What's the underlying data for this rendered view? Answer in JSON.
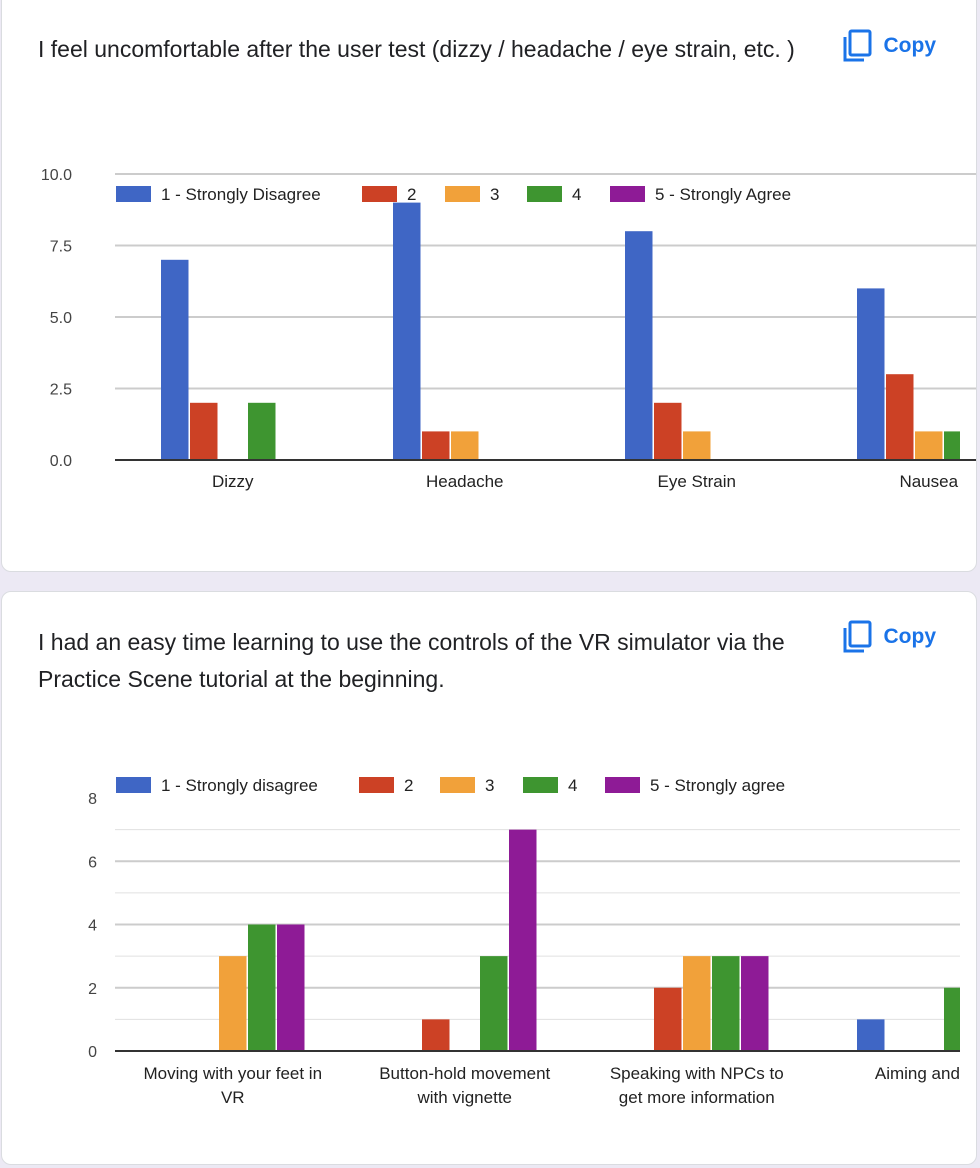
{
  "questions": [
    {
      "text": "I feel uncomfortable after the user test (dizzy / headache / eye strain, etc. )",
      "copy_label": "Copy",
      "copy_icon": "copy-icon"
    },
    {
      "text": "I had an easy time learning to use the controls of the VR simulator via the Practice Scene tutorial at the beginning.",
      "copy_label": "Copy",
      "copy_icon": "copy-icon"
    }
  ],
  "colors": {
    "accent": "#1a73e8"
  },
  "chart_data": [
    {
      "type": "bar",
      "title": "",
      "xlabel": "",
      "ylabel": "",
      "ylim": [
        0,
        10
      ],
      "y_ticks": [
        "0.0",
        "2.5",
        "5.0",
        "7.5",
        "10.0"
      ],
      "legend_position": "top",
      "grid": true,
      "categories": [
        "Dizzy",
        "Headache",
        "Eye Strain",
        "Nausea"
      ],
      "series": [
        {
          "name": "1 - Strongly Disagree",
          "color": "#3f66c5",
          "values": [
            7,
            9,
            8,
            6
          ]
        },
        {
          "name": "2",
          "color": "#cc4125",
          "values": [
            2,
            1,
            2,
            3
          ]
        },
        {
          "name": "3",
          "color": "#f1a13a",
          "values": [
            0,
            1,
            1,
            1
          ]
        },
        {
          "name": "4",
          "color": "#3e9530",
          "values": [
            2,
            0,
            0,
            1
          ]
        },
        {
          "name": "5 - Strongly Agree",
          "color": "#8e1b96",
          "values": [
            0,
            0,
            0,
            0
          ]
        }
      ]
    },
    {
      "type": "bar",
      "title": "",
      "xlabel": "",
      "ylabel": "",
      "ylim": [
        0,
        8
      ],
      "y_ticks": [
        "0",
        "2",
        "4",
        "6",
        "8"
      ],
      "legend_position": "top",
      "grid": true,
      "categories": [
        "Moving with your feet in VR",
        "Button-hold movement with vignette",
        "Speaking with NPCs to get more information",
        "Aiming and sh"
      ],
      "series": [
        {
          "name": "1 - Strongly disagree",
          "color": "#3f66c5",
          "values": [
            0,
            0,
            0,
            1
          ]
        },
        {
          "name": "2",
          "color": "#cc4125",
          "values": [
            0,
            1,
            2,
            0
          ]
        },
        {
          "name": "3",
          "color": "#f1a13a",
          "values": [
            3,
            0,
            3,
            0
          ]
        },
        {
          "name": "4",
          "color": "#3e9530",
          "values": [
            4,
            3,
            3,
            2
          ]
        },
        {
          "name": "5 - Strongly agree",
          "color": "#8e1b96",
          "values": [
            4,
            7,
            3,
            0
          ]
        }
      ]
    }
  ]
}
